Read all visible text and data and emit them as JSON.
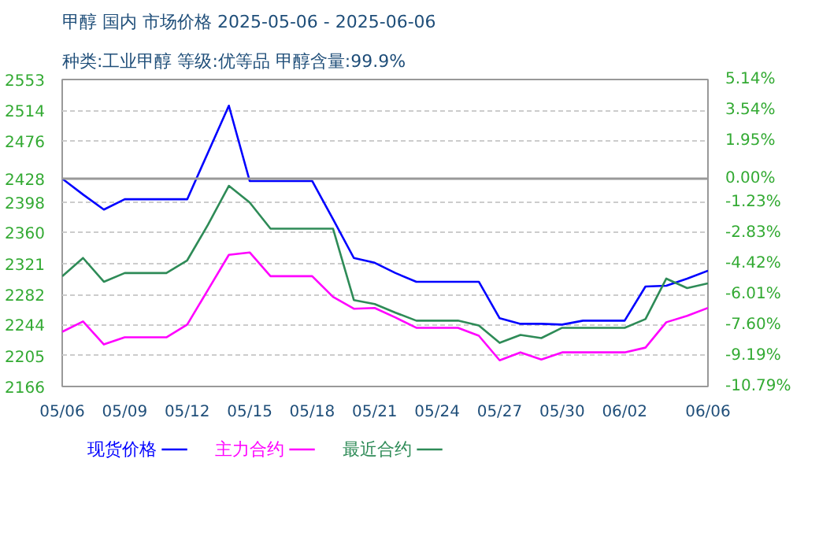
{
  "chart_data": {
    "type": "line",
    "title": "甲醇 国内 市场价格 2025-05-06 - 2025-06-06",
    "subtitle": "种类:工业甲醇 等级:优等品 甲醇含量:99.9%",
    "x": [
      "2025-05-06",
      "2025-05-07",
      "2025-05-08",
      "2025-05-09",
      "2025-05-10",
      "2025-05-11",
      "2025-05-12",
      "2025-05-13",
      "2025-05-14",
      "2025-05-15",
      "2025-05-16",
      "2025-05-17",
      "2025-05-18",
      "2025-05-19",
      "2025-05-20",
      "2025-05-21",
      "2025-05-22",
      "2025-05-23",
      "2025-05-24",
      "2025-05-25",
      "2025-05-26",
      "2025-05-27",
      "2025-05-28",
      "2025-05-29",
      "2025-05-30",
      "2025-05-31",
      "2025-06-01",
      "2025-06-02",
      "2025-06-03",
      "2025-06-04",
      "2025-06-05",
      "2025-06-06"
    ],
    "series": [
      {
        "name": "现货价格",
        "color": "#0000ff",
        "values": [
          2428,
          2408,
          2389,
          2402,
          2402,
          2402,
          2402,
          2461,
          2520,
          2425,
          2425,
          2425,
          2425,
          2377,
          2328,
          2322,
          2309,
          2298,
          2298,
          2298,
          2298,
          2252,
          2245,
          2245,
          2244,
          2249,
          2249,
          2249,
          2292,
          2293,
          2302,
          2312
        ]
      },
      {
        "name": "主力合约",
        "color": "#ff00ff",
        "values": [
          2235,
          2248,
          2219,
          2228,
          2228,
          2228,
          2244,
          2288,
          2332,
          2335,
          2305,
          2305,
          2305,
          2279,
          2264,
          2265,
          2253,
          2240,
          2240,
          2240,
          2230,
          2199,
          2209,
          2200,
          2209,
          2209,
          2209,
          2209,
          2215,
          2247,
          2255,
          2265
        ]
      },
      {
        "name": "最近合约",
        "color": "#2e8b57",
        "values": [
          2305,
          2328,
          2298,
          2309,
          2309,
          2309,
          2325,
          2370,
          2419,
          2398,
          2365,
          2365,
          2365,
          2365,
          2275,
          2270,
          2259,
          2249,
          2249,
          2249,
          2243,
          2221,
          2231,
          2227,
          2240,
          2240,
          2240,
          2240,
          2251,
          2302,
          2290,
          2296
        ]
      }
    ],
    "xlim": [
      "2025-05-06",
      "2025-06-06"
    ],
    "xticks": [
      {
        "value": "2025-05-06",
        "label": "05/06"
      },
      {
        "value": "2025-05-09",
        "label": "05/09"
      },
      {
        "value": "2025-05-12",
        "label": "05/12"
      },
      {
        "value": "2025-05-15",
        "label": "05/15"
      },
      {
        "value": "2025-05-18",
        "label": "05/18"
      },
      {
        "value": "2025-05-21",
        "label": "05/21"
      },
      {
        "value": "2025-05-24",
        "label": "05/24"
      },
      {
        "value": "2025-05-27",
        "label": "05/27"
      },
      {
        "value": "2025-05-30",
        "label": "05/30"
      },
      {
        "value": "2025-06-02",
        "label": "06/02"
      },
      {
        "value": "2025-06-06",
        "label": "06/06"
      }
    ],
    "ylim": [
      2166,
      2553
    ],
    "yticks": [
      2166,
      2205,
      2244,
      2282,
      2321,
      2360,
      2398,
      2428,
      2476,
      2514,
      2553
    ],
    "y2lim": [
      -10.79,
      5.14
    ],
    "y2ticks": [
      {
        "value": -10.79,
        "label": "-10.79%"
      },
      {
        "value": -9.19,
        "label": "-9.19%"
      },
      {
        "value": -7.6,
        "label": "-7.60%"
      },
      {
        "value": -6.01,
        "label": "-6.01%"
      },
      {
        "value": -4.42,
        "label": "-4.42%"
      },
      {
        "value": -2.83,
        "label": "-2.83%"
      },
      {
        "value": -1.23,
        "label": "-1.23%"
      },
      {
        "value": 0,
        "label": "0.00%"
      },
      {
        "value": 1.95,
        "label": "1.95%"
      },
      {
        "value": 3.54,
        "label": "3.54%"
      },
      {
        "value": 5.14,
        "label": "5.14%"
      }
    ],
    "ref_lines": [
      {
        "axis": "y",
        "value": 2428,
        "color": "#999999"
      }
    ],
    "grid": true,
    "legend": "bottom",
    "marker": "none",
    "line_style": "solid"
  }
}
